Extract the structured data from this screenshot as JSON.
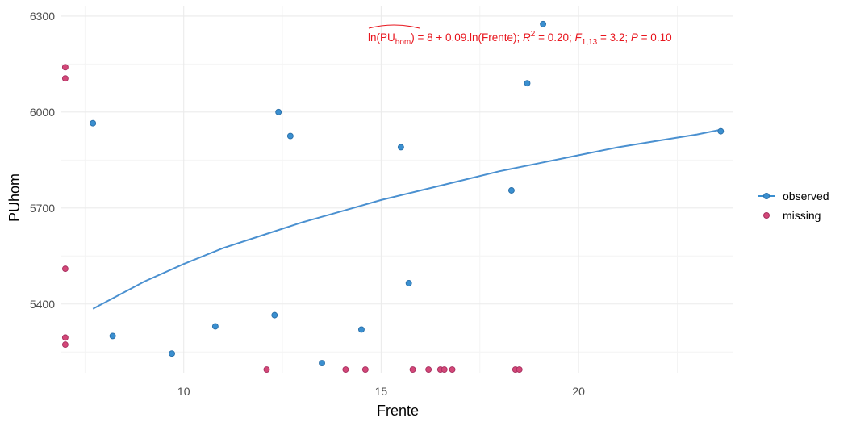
{
  "chart_data": {
    "type": "scatter",
    "title": "",
    "xlabel": "Frente",
    "ylabel": "PUhom",
    "xlim": [
      6.9,
      23.9
    ],
    "ylim": [
      5185,
      6330
    ],
    "x_ticks": [
      "10",
      "15",
      "20"
    ],
    "y_ticks": [
      "5400",
      "5700",
      "6000",
      "6300"
    ],
    "x_tick_values": [
      10,
      15,
      20
    ],
    "y_tick_values": [
      5400,
      5700,
      6000,
      6300
    ],
    "grid": true,
    "legend_position": "right",
    "colors": {
      "observed": "#3a8fd0",
      "observed_edge": "#2a6fa8",
      "missing": "#d34778",
      "missing_edge": "#a83060",
      "fit": "#4a90d0",
      "annotation": "#e8161e",
      "grid_major": "#ebebeb",
      "grid_minor": "#f4f4f4"
    },
    "series": [
      {
        "name": "observed",
        "points": [
          {
            "x": 7.7,
            "y": 5965
          },
          {
            "x": 8.2,
            "y": 5300
          },
          {
            "x": 9.7,
            "y": 5245
          },
          {
            "x": 10.8,
            "y": 5330
          },
          {
            "x": 12.3,
            "y": 5365
          },
          {
            "x": 12.4,
            "y": 6000
          },
          {
            "x": 12.7,
            "y": 5925
          },
          {
            "x": 13.5,
            "y": 5215
          },
          {
            "x": 14.5,
            "y": 5320
          },
          {
            "x": 15.5,
            "y": 5890
          },
          {
            "x": 15.7,
            "y": 5465
          },
          {
            "x": 18.3,
            "y": 5755
          },
          {
            "x": 18.7,
            "y": 6090
          },
          {
            "x": 19.1,
            "y": 6275
          },
          {
            "x": 23.6,
            "y": 5940
          }
        ]
      },
      {
        "name": "missing",
        "points": [
          {
            "x": 7.0,
            "y": 6140
          },
          {
            "x": 7.0,
            "y": 6105
          },
          {
            "x": 7.0,
            "y": 5510
          },
          {
            "x": 7.0,
            "y": 5295
          },
          {
            "x": 7.0,
            "y": 5273
          },
          {
            "x": 12.1,
            "y": 5195
          },
          {
            "x": 14.1,
            "y": 5195
          },
          {
            "x": 14.6,
            "y": 5195
          },
          {
            "x": 15.8,
            "y": 5195
          },
          {
            "x": 16.2,
            "y": 5195
          },
          {
            "x": 16.5,
            "y": 5195
          },
          {
            "x": 16.6,
            "y": 5195
          },
          {
            "x": 16.8,
            "y": 5195
          },
          {
            "x": 18.4,
            "y": 5195
          },
          {
            "x": 18.5,
            "y": 5195
          }
        ]
      }
    ],
    "fit": {
      "model": "PUhom = exp(8 + 0.09 ln(Frente))",
      "x": [
        7.7,
        9,
        10,
        11,
        12,
        13,
        14,
        15,
        16,
        17,
        18,
        19,
        20,
        21,
        22,
        23,
        23.6
      ],
      "y": [
        5385,
        5470,
        5525,
        5575,
        5615,
        5655,
        5690,
        5725,
        5755,
        5785,
        5815,
        5840,
        5865,
        5890,
        5910,
        5930,
        5945
      ]
    },
    "legend": [
      "observed",
      "missing"
    ],
    "annotation": {
      "main": "ln(PU",
      "sub1": "hom",
      "mid": ") = 8 + 0.09.ln(Frente); ",
      "r": "R",
      "sup": "2",
      "r_rest": " = 0.20; ",
      "f": "F",
      "fsub": "1,13",
      "f_rest": " = 3.2; ",
      "p": "P",
      "p_rest": " = 0.10"
    }
  }
}
